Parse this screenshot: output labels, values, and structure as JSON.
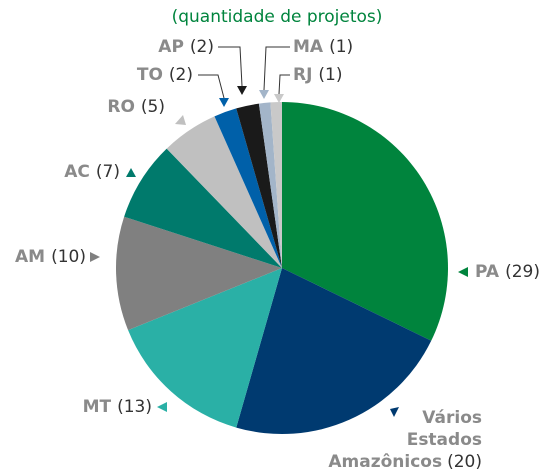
{
  "chart_data": {
    "type": "pie",
    "subtitle": "(quantidade de projetos)",
    "categories": [
      "PA",
      "Vários Estados Amazônicos",
      "MT",
      "AM",
      "AC",
      "RO",
      "TO",
      "AP",
      "MA",
      "RJ"
    ],
    "values": [
      29,
      20,
      13,
      10,
      7,
      5,
      2,
      2,
      1,
      1
    ],
    "value_labels": [
      "(29)",
      "(20)",
      "(13)",
      "(10)",
      "(7)",
      "(5)",
      "(2)",
      "(2)",
      "(1)",
      "(1)"
    ],
    "colors": [
      "#00843d",
      "#003a70",
      "#2ab0a6",
      "#808080",
      "#007a6c",
      "#c0c0c0",
      "#0060a9",
      "#1a1a1a",
      "#a3b5c9",
      "#c9c9c9"
    ]
  }
}
